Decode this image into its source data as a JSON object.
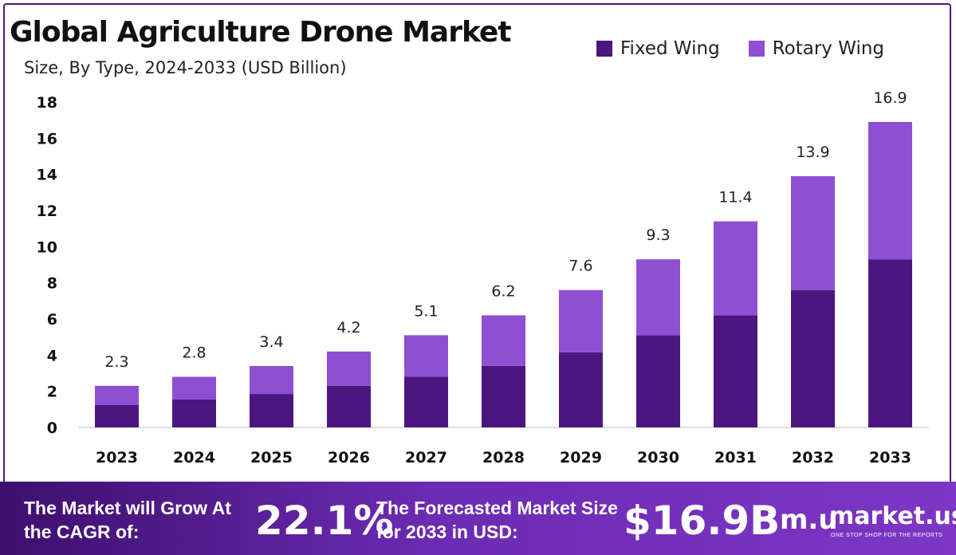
{
  "chart_data": {
    "type": "bar",
    "stacked": true,
    "title": "Global Agriculture Drone Market",
    "subtitle": "Size, By Type, 2024-2033 (USD Billion)",
    "categories": [
      "2023",
      "2024",
      "2025",
      "2026",
      "2027",
      "2028",
      "2029",
      "2030",
      "2031",
      "2032",
      "2033"
    ],
    "series": [
      {
        "name": "Fixed Wing",
        "color": "#4a1780",
        "values": [
          1.25,
          1.55,
          1.85,
          2.3,
          2.8,
          3.4,
          4.15,
          5.1,
          6.2,
          7.6,
          9.3
        ]
      },
      {
        "name": "Rotary Wing",
        "color": "#8e4fd3",
        "values": [
          1.05,
          1.25,
          1.55,
          1.9,
          2.3,
          2.8,
          3.45,
          4.2,
          5.2,
          6.3,
          7.6
        ]
      }
    ],
    "totals": [
      "2.3",
      "2.8",
      "3.4",
      "4.2",
      "5.1",
      "6.2",
      "7.6",
      "9.3",
      "11.4",
      "13.9",
      "16.9"
    ],
    "yticks": [
      0,
      2,
      4,
      6,
      8,
      10,
      12,
      14,
      16,
      18
    ],
    "ylim": [
      0,
      18
    ],
    "legend_position": "top-right",
    "grid": false
  },
  "footer": {
    "cagr_label": "The Market will Grow At the CAGR of:",
    "cagr_value": "22.1%",
    "size_label": "The Forecasted Market Size for 2033 in USD:",
    "size_value": "$16.9B"
  },
  "brand": {
    "icon": "m.u",
    "name": "market.us",
    "tagline": "ONE STOP SHOP FOR THE REPORTS"
  }
}
